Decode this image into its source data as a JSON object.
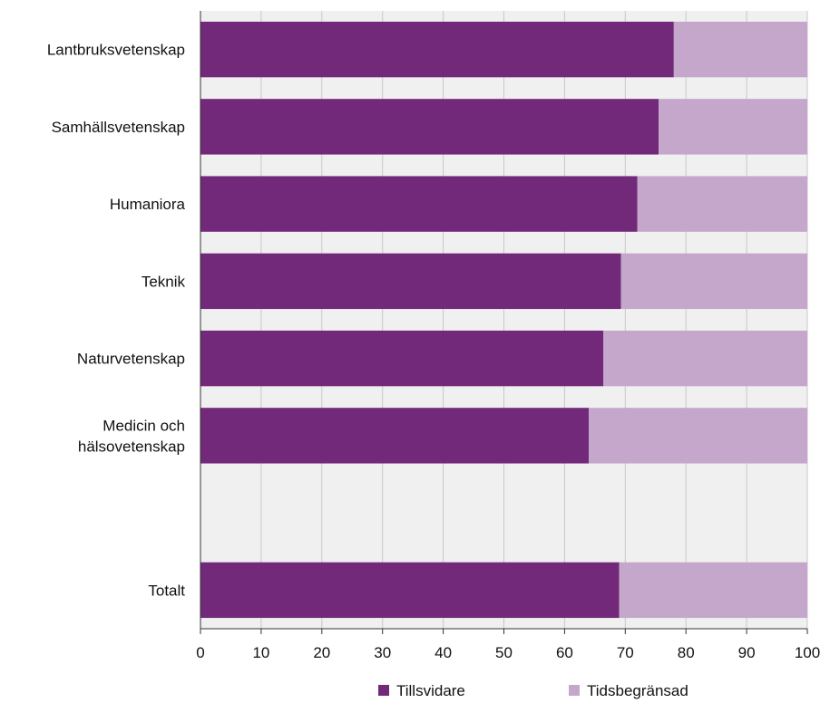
{
  "chart_data": {
    "type": "bar",
    "orientation": "horizontal",
    "stacked": true,
    "categories": [
      [
        "Lantbruksvetenskap"
      ],
      [
        "Samhällsvetenskap"
      ],
      [
        "Humaniora"
      ],
      [
        "Teknik"
      ],
      [
        "Naturvetenskap"
      ],
      [
        "Medicin och",
        "hälsovetenskap"
      ],
      [
        ""
      ],
      [
        "Totalt"
      ]
    ],
    "series": [
      {
        "name": "Tillsvidare",
        "color": "#72297a",
        "values": [
          78,
          75.5,
          72,
          69.3,
          66.4,
          64,
          null,
          69
        ]
      },
      {
        "name": "Tidsbegränsad",
        "color": "#c5a7cb",
        "values": [
          22,
          24.5,
          28,
          30.7,
          33.6,
          36,
          null,
          31
        ]
      }
    ],
    "xlim": [
      0,
      100
    ],
    "xticks": [
      0,
      10,
      20,
      30,
      40,
      50,
      60,
      70,
      80,
      90,
      100
    ],
    "grid": true,
    "background_color": "#f0f0f0",
    "legend_position": "bottom"
  }
}
